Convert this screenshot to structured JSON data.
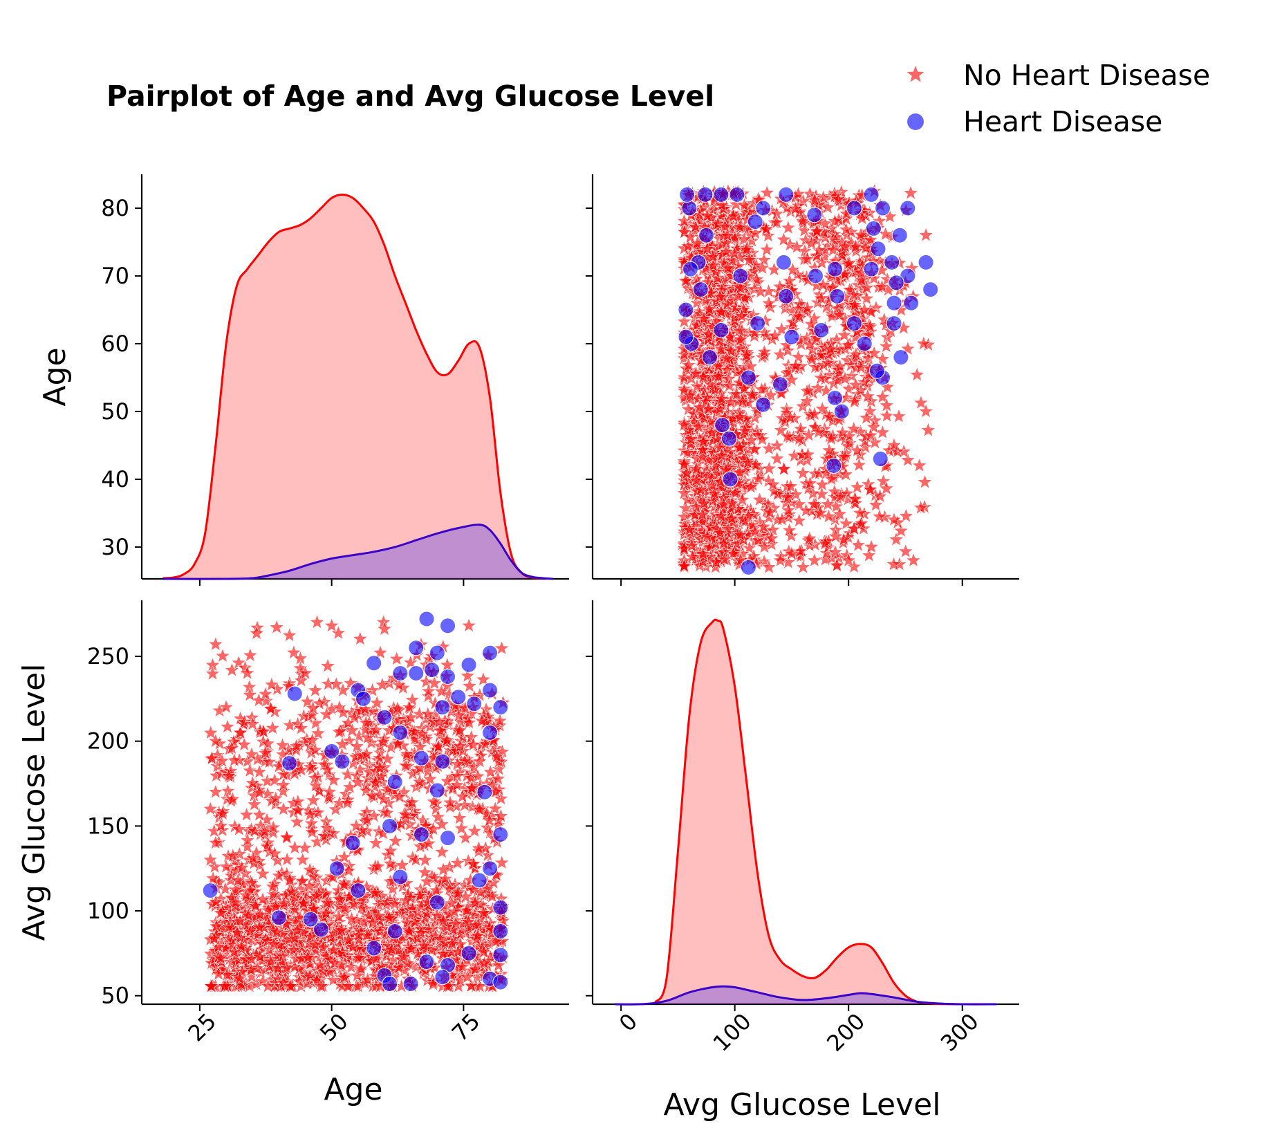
{
  "colors": {
    "no_hd": "#ff0000",
    "hd": "#0000ff",
    "no_hd_fill": "#ffbdbd",
    "hd_fill": "#b87fbf"
  },
  "icons": {
    "no_hd_marker": "star-icon",
    "hd_marker": "circle-icon"
  },
  "chart_data": {
    "type": "pairplot",
    "title": "Pairplot of Age and Avg Glucose Level",
    "variables": [
      "Age",
      "Avg Glucose Level"
    ],
    "legend": {
      "placement": "top-right",
      "entries": [
        {
          "name": "No Heart Disease",
          "marker": "star",
          "color": "#ff0000"
        },
        {
          "name": "Heart Disease",
          "marker": "circle",
          "color": "#0000ff"
        }
      ]
    },
    "axes": {
      "age": {
        "label": "Age",
        "range": [
          14,
          95
        ],
        "kde_y_ticks": [
          30,
          40,
          50,
          60,
          70,
          80
        ],
        "kde_y_range": [
          25.3,
          85.0
        ],
        "x_ticks": [
          25,
          50,
          75
        ]
      },
      "glucose": {
        "label": "Avg Glucose Level",
        "range": [
          -25,
          350
        ],
        "y_ticks": [
          50,
          100,
          150,
          200,
          250
        ],
        "y_range": [
          45,
          283
        ],
        "x_ticks": [
          0,
          100,
          200,
          300
        ]
      }
    },
    "kde": {
      "age": {
        "no_heart_disease": {
          "x": [
            18,
            20,
            22,
            24,
            26,
            28,
            30,
            32,
            34,
            36,
            38,
            40,
            42,
            44,
            46,
            48,
            50,
            52,
            54,
            56,
            58,
            60,
            62,
            64,
            66,
            68,
            70,
            72,
            74,
            76,
            78,
            80,
            82,
            84,
            86,
            88,
            90
          ],
          "y": [
            25.4,
            25.5,
            26.0,
            27.5,
            32.0,
            45.0,
            60.0,
            68.5,
            71.0,
            73.0,
            75.0,
            76.5,
            77.0,
            77.5,
            78.5,
            80.0,
            81.5,
            82.0,
            81.5,
            80.0,
            78.0,
            74.5,
            70.0,
            66.0,
            62.0,
            58.5,
            55.8,
            55.5,
            57.5,
            60.0,
            59.5,
            52.0,
            38.0,
            29.0,
            26.2,
            25.5,
            25.4
          ]
        },
        "heart_disease": {
          "x": [
            18,
            30,
            35,
            38,
            42,
            46,
            50,
            54,
            58,
            62,
            66,
            70,
            74,
            78,
            80,
            82,
            84,
            86,
            88,
            90,
            92
          ],
          "y": [
            25.3,
            25.3,
            25.4,
            25.8,
            26.5,
            27.5,
            28.3,
            28.8,
            29.3,
            30.0,
            31.0,
            32.0,
            32.8,
            33.3,
            32.5,
            30.5,
            28.0,
            26.2,
            25.6,
            25.4,
            25.3
          ]
        }
      },
      "glucose": {
        "no_heart_disease": {
          "x": [
            30,
            40,
            50,
            60,
            70,
            80,
            85,
            90,
            100,
            110,
            120,
            130,
            140,
            150,
            160,
            170,
            180,
            190,
            200,
            210,
            220,
            230,
            240,
            250,
            260,
            270,
            280,
            290,
            300,
            330
          ],
          "y": [
            46.0,
            60.0,
            135.0,
            215.0,
            258.0,
            270.0,
            271.0,
            266.0,
            232.0,
            178.0,
            122.0,
            85.0,
            71.0,
            65.5,
            61.5,
            60.5,
            65.0,
            72.5,
            78.5,
            80.5,
            78.5,
            69.0,
            57.5,
            50.0,
            46.5,
            45.5,
            45.2,
            45.1,
            45.0,
            45.0
          ]
        },
        "heart_disease": {
          "x": [
            -5,
            20,
            40,
            60,
            80,
            90,
            100,
            120,
            140,
            160,
            180,
            200,
            210,
            220,
            240,
            260,
            280,
            300,
            330
          ],
          "y": [
            45.0,
            45.1,
            47.0,
            52.0,
            55.0,
            55.5,
            55.0,
            52.0,
            49.0,
            47.5,
            48.5,
            50.5,
            51.5,
            51.0,
            49.0,
            46.5,
            45.4,
            45.0,
            45.0
          ]
        }
      }
    },
    "scatter_generation": {
      "note_values": "points listed as [age, glucose]",
      "heart_disease_points": [
        [
          68,
          272
        ],
        [
          72,
          268
        ],
        [
          66,
          255
        ],
        [
          70,
          252
        ],
        [
          80,
          252
        ],
        [
          58,
          246
        ],
        [
          76,
          245
        ],
        [
          63,
          240
        ],
        [
          66,
          240
        ],
        [
          69,
          242
        ],
        [
          72,
          238
        ],
        [
          55,
          230
        ],
        [
          80,
          230
        ],
        [
          43,
          228
        ],
        [
          74,
          226
        ],
        [
          56,
          225
        ],
        [
          77,
          222
        ],
        [
          71,
          220
        ],
        [
          82,
          220
        ],
        [
          60,
          214
        ],
        [
          80,
          205
        ],
        [
          63,
          205
        ],
        [
          50,
          194
        ],
        [
          52,
          188
        ],
        [
          42,
          187
        ],
        [
          67,
          190
        ],
        [
          71,
          188
        ],
        [
          62,
          176
        ],
        [
          70,
          171
        ],
        [
          79,
          170
        ],
        [
          61,
          150
        ],
        [
          67,
          145
        ],
        [
          72,
          143
        ],
        [
          82,
          145
        ],
        [
          80,
          125
        ],
        [
          51,
          125
        ],
        [
          63,
          120
        ],
        [
          78,
          118
        ],
        [
          55,
          112
        ],
        [
          70,
          105
        ],
        [
          82,
          102
        ],
        [
          48,
          89
        ],
        [
          62,
          88
        ],
        [
          82,
          88
        ],
        [
          58,
          78
        ],
        [
          76,
          75
        ],
        [
          82,
          74
        ],
        [
          68,
          70
        ],
        [
          72,
          68
        ],
        [
          60,
          62
        ],
        [
          80,
          60
        ],
        [
          71,
          61
        ],
        [
          82,
          58
        ],
        [
          27,
          112
        ],
        [
          40,
          96
        ],
        [
          61,
          57
        ],
        [
          65,
          57
        ],
        [
          46,
          95
        ],
        [
          54,
          140
        ]
      ],
      "no_heart_disease_extra": [
        [
          28,
          257
        ],
        [
          50,
          268
        ],
        [
          76,
          268
        ],
        [
          60,
          266
        ],
        [
          34,
          240
        ],
        [
          45,
          240
        ],
        [
          30,
          220
        ],
        [
          35,
          210
        ],
        [
          28,
          200
        ],
        [
          40,
          185
        ],
        [
          28,
          170
        ],
        [
          27,
          160
        ],
        [
          29,
          150
        ],
        [
          28,
          140
        ],
        [
          27,
          130
        ]
      ]
    }
  }
}
